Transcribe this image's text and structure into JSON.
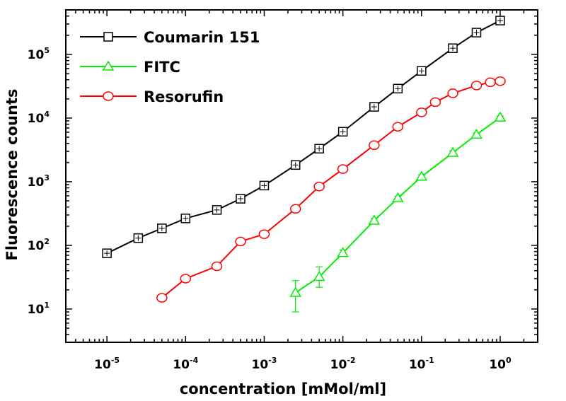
{
  "chart_data": {
    "type": "line",
    "title": "",
    "xlabel": "concentration [mMol/ml]",
    "ylabel": "Fluorescence counts",
    "x_scale": "log",
    "y_scale": "log",
    "xlim": [
      3e-06,
      3
    ],
    "ylim": [
      3,
      500000
    ],
    "grid": false,
    "legend_position": "top-left",
    "x_ticks": [
      {
        "base": "10",
        "exp": "-5",
        "value": 1e-05
      },
      {
        "base": "10",
        "exp": "-4",
        "value": 0.0001
      },
      {
        "base": "10",
        "exp": "-3",
        "value": 0.001
      },
      {
        "base": "10",
        "exp": "-2",
        "value": 0.01
      },
      {
        "base": "10",
        "exp": "-1",
        "value": 0.1
      },
      {
        "base": "10",
        "exp": "0",
        "value": 1
      }
    ],
    "y_ticks": [
      {
        "base": "10",
        "exp": "1",
        "value": 10
      },
      {
        "base": "10",
        "exp": "2",
        "value": 100
      },
      {
        "base": "10",
        "exp": "3",
        "value": 1000
      },
      {
        "base": "10",
        "exp": "4",
        "value": 10000
      },
      {
        "base": "10",
        "exp": "5",
        "value": 100000
      }
    ],
    "series": [
      {
        "name": "Coumarin 151",
        "color": "#000000",
        "marker": "square",
        "x": [
          1e-05,
          2.5e-05,
          5e-05,
          0.0001,
          0.00025,
          0.0005,
          0.001,
          0.0025,
          0.005,
          0.01,
          0.025,
          0.05,
          0.1,
          0.25,
          0.5,
          1
        ],
        "y": [
          75,
          130,
          185,
          265,
          360,
          540,
          870,
          1830,
          3300,
          6100,
          15000,
          29000,
          55000,
          125000,
          220000,
          340000
        ]
      },
      {
        "name": "FITC",
        "color": "#00ee00",
        "marker": "triangle",
        "x": [
          0.0025,
          0.005,
          0.01,
          0.025,
          0.05,
          0.1,
          0.25,
          0.5,
          1
        ],
        "y": [
          18,
          32,
          76,
          245,
          550,
          1200,
          2850,
          5500,
          10200
        ],
        "err_low": [
          9,
          22,
          68,
          225,
          510,
          1120,
          2650,
          5150,
          9600
        ],
        "err_high": [
          28,
          46,
          84,
          265,
          590,
          1280,
          3050,
          5850,
          10800
        ]
      },
      {
        "name": "Resorufin",
        "color": "#ff0000",
        "marker": "circle",
        "x": [
          5e-05,
          0.0001,
          0.00025,
          0.0005,
          0.001,
          0.0025,
          0.005,
          0.01,
          0.025,
          0.05,
          0.1,
          0.15,
          0.25,
          0.5,
          0.75,
          1
        ],
        "y": [
          15,
          30,
          47,
          115,
          150,
          375,
          840,
          1580,
          3750,
          7300,
          12300,
          17800,
          24500,
          32500,
          36500,
          38000
        ]
      }
    ]
  }
}
